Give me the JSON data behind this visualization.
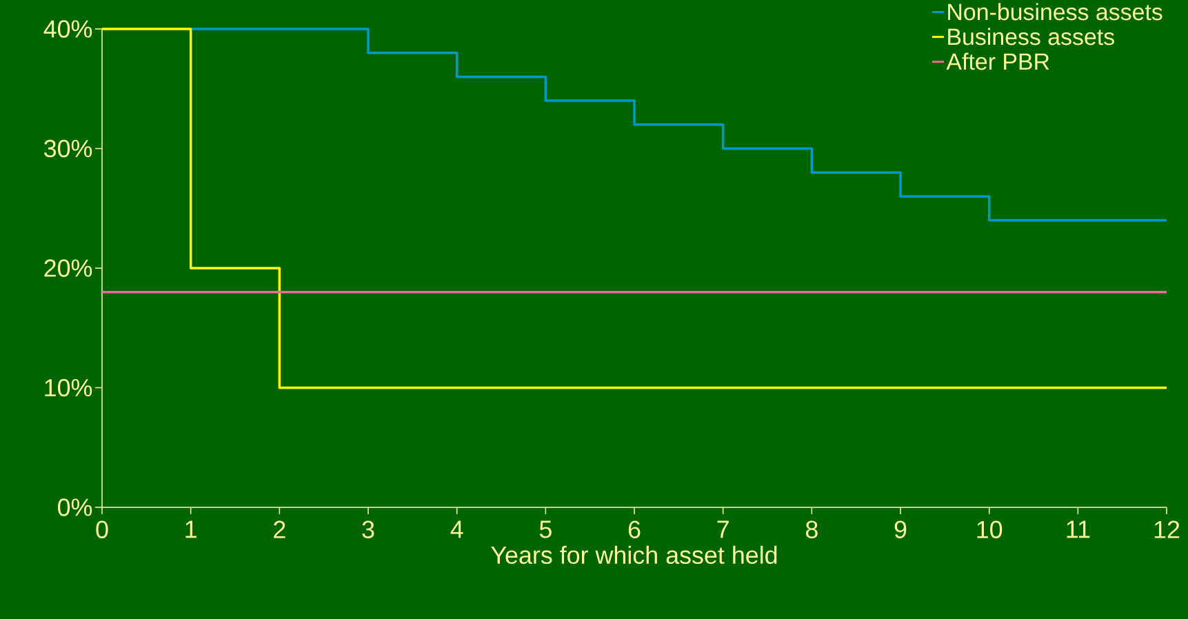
{
  "chart_data": {
    "type": "step",
    "xlabel": "Years for which asset held",
    "x": [
      0,
      1,
      2,
      3,
      4,
      5,
      6,
      7,
      8,
      9,
      10,
      11,
      12
    ],
    "series": [
      {
        "name": "Non-business assets",
        "color": "#0099cc",
        "values": [
          null,
          40,
          40,
          38,
          36,
          34,
          32,
          30,
          28,
          26,
          24,
          24,
          24
        ]
      },
      {
        "name": "Business assets",
        "color": "#ffff00",
        "values": [
          40,
          20,
          10,
          10,
          10,
          10,
          10,
          10,
          10,
          10,
          10,
          10,
          10
        ]
      },
      {
        "name": "After PBR",
        "color": "#ff6699",
        "values": [
          18,
          18,
          18,
          18,
          18,
          18,
          18,
          18,
          18,
          18,
          18,
          18,
          18
        ]
      }
    ],
    "xlim": [
      0,
      12
    ],
    "ylim": [
      0,
      40
    ],
    "xticks": [
      0,
      1,
      2,
      3,
      4,
      5,
      6,
      7,
      8,
      9,
      10,
      11,
      12
    ],
    "yticks": [
      {
        "value": 0,
        "label": "0%"
      },
      {
        "value": 10,
        "label": "10%"
      },
      {
        "value": 20,
        "label": "20%"
      },
      {
        "value": 30,
        "label": "30%"
      },
      {
        "value": 40,
        "label": "40%"
      }
    ],
    "legend": "top right"
  }
}
